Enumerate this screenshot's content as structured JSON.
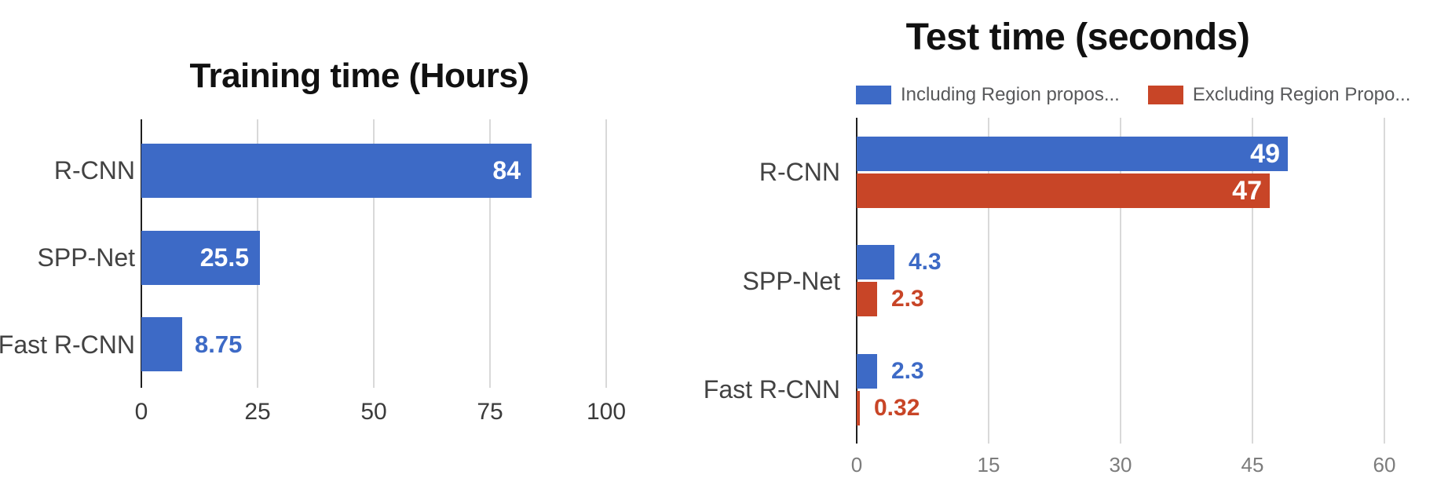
{
  "page": {
    "background": "#ffffff"
  },
  "colors": {
    "series_blue": "#3d6ac6",
    "series_red": "#c84527",
    "gridline": "#d9d9d9",
    "axis": "#1f1f1f",
    "category_label": "#424242",
    "tick_label_left_chart": "#3b3b3b",
    "tick_label_right_chart": "#7c7c7c",
    "legend_text": "#58595b",
    "inside_value_label": "#ffffff",
    "title": "#111111"
  },
  "chart_data": [
    {
      "type": "bar",
      "orientation": "horizontal",
      "title": "Training time (Hours)",
      "categories": [
        "R-CNN",
        "SPP-Net",
        "Fast R-CNN"
      ],
      "series": [
        {
          "name": "Training time",
          "color": "#3d6ac6",
          "values": [
            84,
            25.5,
            8.75
          ],
          "labels": [
            "84",
            "25.5",
            "8.75"
          ],
          "label_placement": [
            "inside",
            "inside",
            "outside"
          ]
        }
      ],
      "xticks": [
        0,
        25,
        50,
        75,
        100
      ],
      "xlim": [
        0,
        108
      ],
      "grid": true,
      "legend_position": "none"
    },
    {
      "type": "bar",
      "orientation": "horizontal",
      "title": "Test time (seconds)",
      "categories": [
        "R-CNN",
        "SPP-Net",
        "Fast R-CNN"
      ],
      "series": [
        {
          "name": "Including Region propos...",
          "color": "#3d6ac6",
          "values": [
            49,
            4.3,
            2.3
          ],
          "labels": [
            "49",
            "4.3",
            "2.3"
          ],
          "label_placement": [
            "inside",
            "outside",
            "outside"
          ]
        },
        {
          "name": "Excluding Region Propo...",
          "color": "#c84527",
          "values": [
            47,
            2.3,
            0.32
          ],
          "labels": [
            "47",
            "2.3",
            "0.32"
          ],
          "label_placement": [
            "inside",
            "outside",
            "outside"
          ]
        }
      ],
      "xticks": [
        0,
        15,
        30,
        45,
        60
      ],
      "xlim": [
        0,
        63.5
      ],
      "grid": true,
      "legend_position": "top"
    }
  ]
}
